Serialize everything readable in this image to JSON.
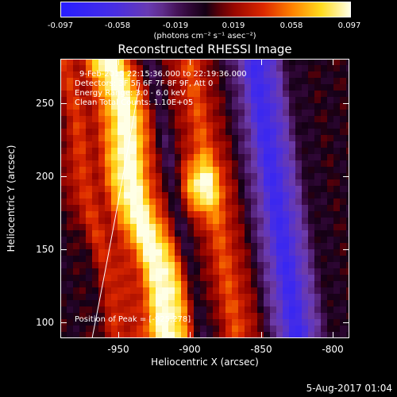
{
  "chart_data": {
    "type": "heatmap",
    "title": "Reconstructed RHESSI Image",
    "xlabel": "Heliocentric X (arcsec)",
    "ylabel": "Heliocentric Y (arcsec)",
    "xlim": [
      -985,
      -790
    ],
    "ylim": [
      90,
      280
    ],
    "xticks": [
      -950,
      -900,
      -850,
      -800
    ],
    "yticks": [
      100,
      150,
      200,
      250
    ],
    "colorbar": {
      "label": "(photons cm⁻² s⁻¹ asec⁻²)",
      "range": [
        -0.097,
        0.097
      ],
      "ticks": [
        "-0.097",
        "-0.058",
        "-0.019",
        "0.019",
        "0.058",
        "0.097"
      ]
    },
    "annotations": [
      "9-Feb-2015 22:15:36.000 to 22:19:36.000",
      "Detectors: 3F 5F 6F 7F 8F 9F, Att 0",
      "Energy Range: 3.0 - 6.0 keV",
      "Clean     Total Counts: 1.10E+05",
      "Position of Peak = [-925,278]"
    ],
    "peak_position": [
      -925,
      278
    ]
  },
  "footer": {
    "date": "5-Aug-2017 01:04"
  },
  "colors": {
    "background": "#000000",
    "text": "#ffffff"
  }
}
